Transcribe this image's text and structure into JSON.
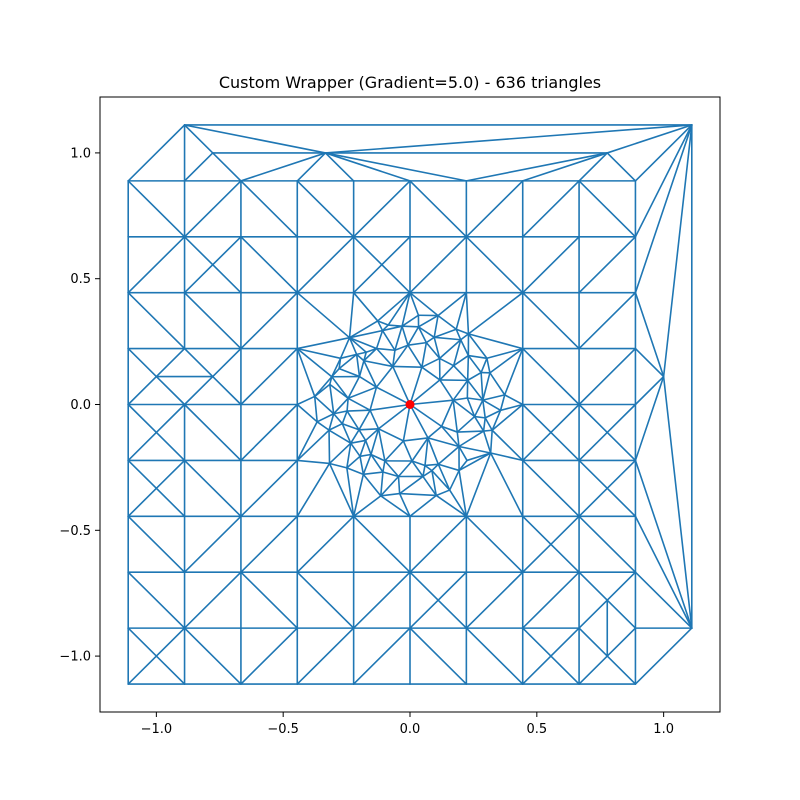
{
  "chart_data": {
    "type": "line",
    "title": "Custom Wrapper (Gradient=5.0) - 636 triangles",
    "xlabel": "",
    "ylabel": "",
    "xlim": [
      -1.2222,
      1.2222
    ],
    "ylim": [
      -1.2222,
      1.2222
    ],
    "x_ticks": [
      -1.0,
      -0.5,
      0.0,
      0.5,
      1.0
    ],
    "y_ticks": [
      -1.0,
      -0.5,
      0.0,
      0.5,
      1.0
    ],
    "x_tick_labels": [
      "−1.0",
      "−0.5",
      "0.0",
      "0.5",
      "1.0"
    ],
    "y_tick_labels": [
      "−1.0",
      "−0.5",
      "0.0",
      "0.5",
      "1.0"
    ],
    "grid": false,
    "mesh": {
      "boundary_polygon": [
        [
          -1.111,
          -1.111
        ],
        [
          0.889,
          -1.111
        ],
        [
          1.111,
          -0.889
        ],
        [
          1.111,
          1.111
        ],
        [
          -0.889,
          1.111
        ],
        [
          -1.111,
          0.889
        ]
      ],
      "coarse_spacing": 0.2222,
      "refinement_center": [
        0.0,
        0.0
      ],
      "refinement_radius_inner": 0.2,
      "refinement_radius_outer": 0.37,
      "triangle_count": 636
    },
    "marker": {
      "x": 0.0,
      "y": 0.0
    }
  },
  "colors": {
    "mesh": "#1f77b4",
    "marker": "#ff0000"
  }
}
